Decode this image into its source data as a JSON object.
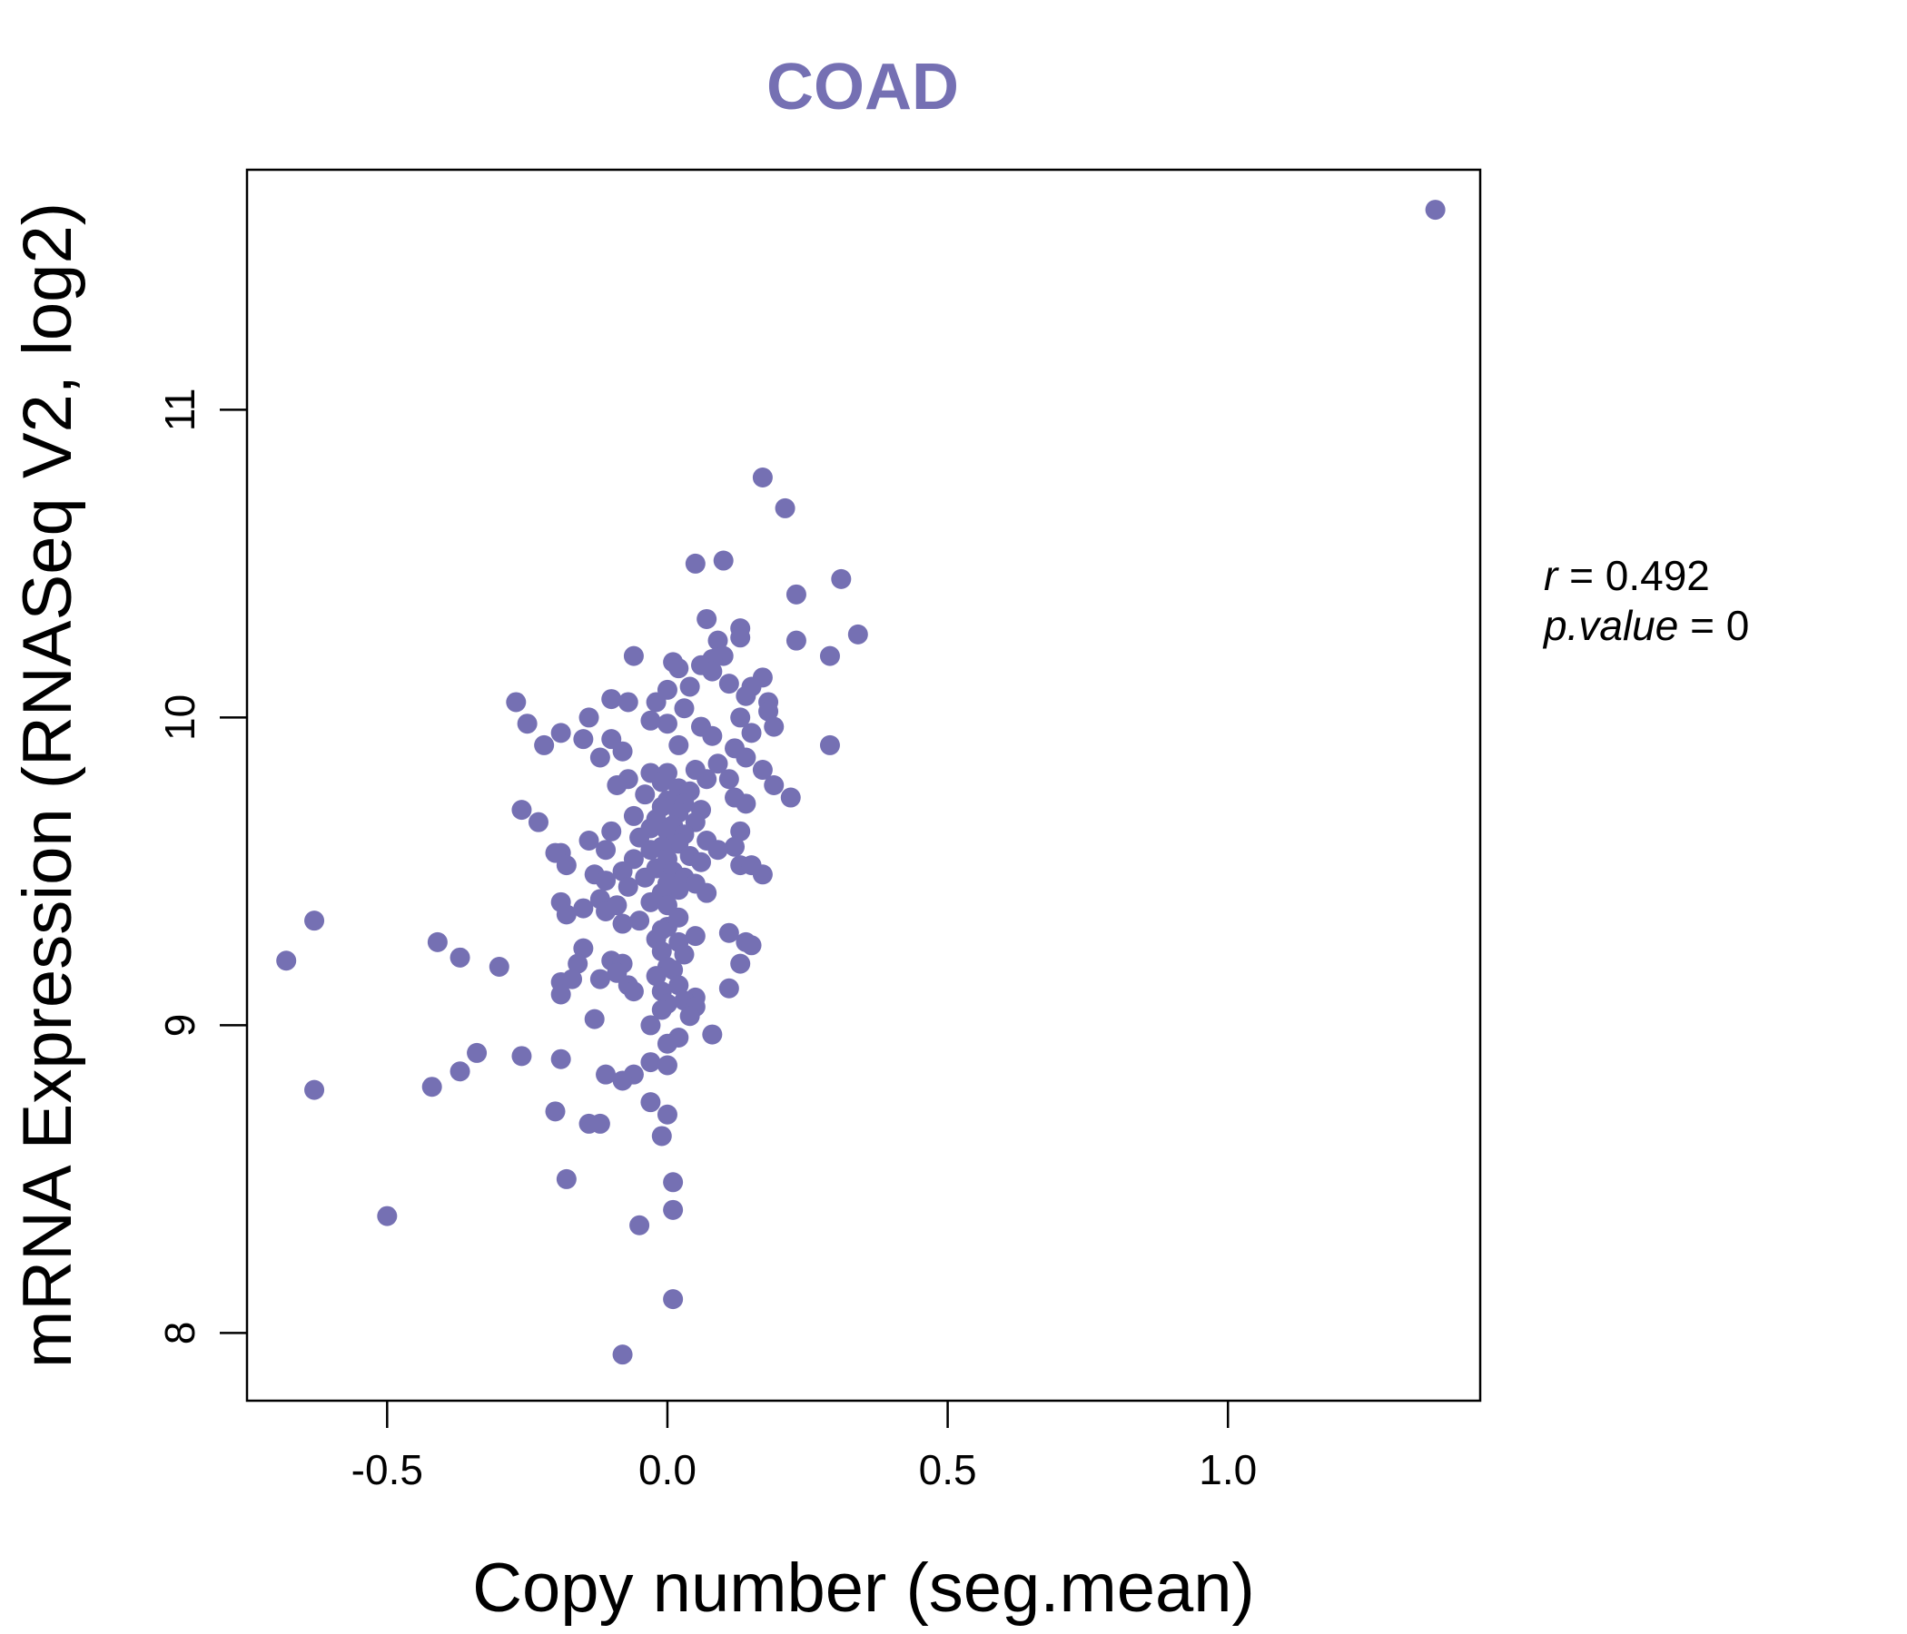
{
  "chart_data": {
    "type": "scatter",
    "title": "COAD",
    "xlabel": "Copy number (seg.mean)",
    "ylabel": "mRNA Expression (RNASeq V2, log2)",
    "xlim": [
      -0.75,
      1.45
    ],
    "ylim": [
      7.78,
      11.78
    ],
    "xticks": [
      -0.5,
      0.0,
      0.5,
      1.0
    ],
    "xtick_labels": [
      "-0.5",
      "0.0",
      "0.5",
      "1.0"
    ],
    "yticks": [
      8,
      9,
      10,
      11
    ],
    "ytick_labels": [
      "8",
      "9",
      "10",
      "11"
    ],
    "point_color": "#7570b3",
    "annotation": {
      "r_label": "r",
      "r_value": "0.492",
      "p_label": "p.value",
      "p_value": "0"
    },
    "points": [
      [
        1.37,
        11.65
      ],
      [
        0.17,
        10.78
      ],
      [
        0.21,
        10.68
      ],
      [
        0.05,
        10.5
      ],
      [
        0.1,
        10.51
      ],
      [
        0.31,
        10.45
      ],
      [
        0.23,
        10.4
      ],
      [
        0.07,
        10.32
      ],
      [
        0.13,
        10.29
      ],
      [
        0.34,
        10.27
      ],
      [
        0.13,
        10.26
      ],
      [
        0.09,
        10.25
      ],
      [
        0.23,
        10.25
      ],
      [
        0.29,
        10.2
      ],
      [
        0.1,
        10.2
      ],
      [
        0.08,
        10.19
      ],
      [
        -0.06,
        10.2
      ],
      [
        0.01,
        10.18
      ],
      [
        0.02,
        10.16
      ],
      [
        0.06,
        10.17
      ],
      [
        0.08,
        10.15
      ],
      [
        0.17,
        10.13
      ],
      [
        0.11,
        10.11
      ],
      [
        0.15,
        10.1
      ],
      [
        0.0,
        10.09
      ],
      [
        0.04,
        10.1
      ],
      [
        0.14,
        10.07
      ],
      [
        0.18,
        10.05
      ],
      [
        -0.1,
        10.06
      ],
      [
        -0.07,
        10.05
      ],
      [
        -0.27,
        10.05
      ],
      [
        -0.02,
        10.05
      ],
      [
        0.03,
        10.03
      ],
      [
        0.18,
        10.02
      ],
      [
        0.13,
        10.0
      ],
      [
        -0.14,
        10.0
      ],
      [
        0.0,
        9.98
      ],
      [
        -0.25,
        9.98
      ],
      [
        -0.03,
        9.99
      ],
      [
        0.06,
        9.97
      ],
      [
        0.19,
        9.97
      ],
      [
        -0.19,
        9.95
      ],
      [
        -0.15,
        9.93
      ],
      [
        0.15,
        9.95
      ],
      [
        0.08,
        9.94
      ],
      [
        -0.1,
        9.93
      ],
      [
        -0.22,
        9.91
      ],
      [
        0.12,
        9.9
      ],
      [
        0.29,
        9.91
      ],
      [
        0.02,
        9.91
      ],
      [
        -0.08,
        9.89
      ],
      [
        -0.12,
        9.87
      ],
      [
        0.14,
        9.87
      ],
      [
        0.09,
        9.85
      ],
      [
        0.05,
        9.83
      ],
      [
        0.17,
        9.83
      ],
      [
        -0.03,
        9.82
      ],
      [
        0.0,
        9.82
      ],
      [
        0.11,
        9.8
      ],
      [
        -0.07,
        9.8
      ],
      [
        0.07,
        9.8
      ],
      [
        -0.01,
        9.79
      ],
      [
        -0.09,
        9.78
      ],
      [
        0.19,
        9.78
      ],
      [
        0.02,
        9.77
      ],
      [
        0.04,
        9.76
      ],
      [
        0.22,
        9.74
      ],
      [
        0.12,
        9.74
      ],
      [
        -0.04,
        9.75
      ],
      [
        0.0,
        9.73
      ],
      [
        0.03,
        9.72
      ],
      [
        0.14,
        9.72
      ],
      [
        -0.01,
        9.71
      ],
      [
        0.06,
        9.7
      ],
      [
        -0.26,
        9.7
      ],
      [
        0.02,
        9.69
      ],
      [
        -0.06,
        9.68
      ],
      [
        -0.02,
        9.67
      ],
      [
        -0.23,
        9.66
      ],
      [
        0.05,
        9.66
      ],
      [
        0.01,
        9.65
      ],
      [
        -0.03,
        9.64
      ],
      [
        0.0,
        9.63
      ],
      [
        0.13,
        9.63
      ],
      [
        -0.1,
        9.63
      ],
      [
        0.03,
        9.62
      ],
      [
        -0.05,
        9.61
      ],
      [
        -0.14,
        9.6
      ],
      [
        0.07,
        9.6
      ],
      [
        0.02,
        9.59
      ],
      [
        -0.01,
        9.58
      ],
      [
        0.12,
        9.58
      ],
      [
        -0.03,
        9.57
      ],
      [
        -0.11,
        9.57
      ],
      [
        0.09,
        9.57
      ],
      [
        -0.19,
        9.56
      ],
      [
        -0.2,
        9.56
      ],
      [
        0.04,
        9.55
      ],
      [
        0.0,
        9.54
      ],
      [
        -0.06,
        9.54
      ],
      [
        0.06,
        9.53
      ],
      [
        -0.18,
        9.52
      ],
      [
        0.13,
        9.52
      ],
      [
        0.15,
        9.52
      ],
      [
        -0.02,
        9.51
      ],
      [
        -0.08,
        9.5
      ],
      [
        0.01,
        9.5
      ],
      [
        -0.13,
        9.49
      ],
      [
        0.17,
        9.49
      ],
      [
        0.03,
        9.48
      ],
      [
        -0.04,
        9.48
      ],
      [
        -0.11,
        9.47
      ],
      [
        0.0,
        9.46
      ],
      [
        0.05,
        9.46
      ],
      [
        -0.07,
        9.45
      ],
      [
        0.02,
        9.44
      ],
      [
        -0.01,
        9.43
      ],
      [
        0.07,
        9.43
      ],
      [
        -0.12,
        9.41
      ],
      [
        -0.19,
        9.4
      ],
      [
        -0.03,
        9.4
      ],
      [
        0.0,
        9.39
      ],
      [
        -0.09,
        9.39
      ],
      [
        -0.15,
        9.38
      ],
      [
        -0.11,
        9.37
      ],
      [
        -0.18,
        9.36
      ],
      [
        0.02,
        9.35
      ],
      [
        -0.05,
        9.34
      ],
      [
        -0.63,
        9.34
      ],
      [
        -0.08,
        9.33
      ],
      [
        0.0,
        9.32
      ],
      [
        -0.01,
        9.31
      ],
      [
        0.11,
        9.3
      ],
      [
        0.05,
        9.29
      ],
      [
        -0.02,
        9.28
      ],
      [
        -0.41,
        9.27
      ],
      [
        0.14,
        9.27
      ],
      [
        0.02,
        9.27
      ],
      [
        0.15,
        9.26
      ],
      [
        -0.15,
        9.25
      ],
      [
        -0.01,
        9.24
      ],
      [
        0.03,
        9.23
      ],
      [
        -0.37,
        9.22
      ],
      [
        -0.68,
        9.21
      ],
      [
        -0.1,
        9.21
      ],
      [
        0.13,
        9.2
      ],
      [
        -0.08,
        9.2
      ],
      [
        -0.16,
        9.2
      ],
      [
        0.0,
        9.19
      ],
      [
        -0.3,
        9.19
      ],
      [
        0.01,
        9.18
      ],
      [
        -0.09,
        9.17
      ],
      [
        -0.02,
        9.16
      ],
      [
        -0.12,
        9.15
      ],
      [
        -0.17,
        9.15
      ],
      [
        -0.19,
        9.14
      ],
      [
        -0.07,
        9.13
      ],
      [
        0.02,
        9.13
      ],
      [
        0.11,
        9.12
      ],
      [
        -0.01,
        9.11
      ],
      [
        -0.06,
        9.11
      ],
      [
        -0.19,
        9.1
      ],
      [
        0.05,
        9.09
      ],
      [
        0.03,
        9.08
      ],
      [
        0.0,
        9.07
      ],
      [
        0.05,
        9.06
      ],
      [
        -0.01,
        9.05
      ],
      [
        0.04,
        9.03
      ],
      [
        -0.13,
        9.02
      ],
      [
        -0.03,
        9.0
      ],
      [
        0.08,
        8.97
      ],
      [
        0.02,
        8.96
      ],
      [
        0.0,
        8.94
      ],
      [
        -0.34,
        8.91
      ],
      [
        -0.26,
        8.9
      ],
      [
        -0.19,
        8.89
      ],
      [
        -0.03,
        8.88
      ],
      [
        0.0,
        8.87
      ],
      [
        -0.37,
        8.85
      ],
      [
        -0.11,
        8.84
      ],
      [
        -0.06,
        8.84
      ],
      [
        -0.08,
        8.82
      ],
      [
        -0.42,
        8.8
      ],
      [
        -0.63,
        8.79
      ],
      [
        -0.03,
        8.75
      ],
      [
        -0.2,
        8.72
      ],
      [
        0.0,
        8.71
      ],
      [
        -0.14,
        8.68
      ],
      [
        -0.12,
        8.68
      ],
      [
        -0.01,
        8.64
      ],
      [
        -0.18,
        8.5
      ],
      [
        0.01,
        8.49
      ],
      [
        0.01,
        8.4
      ],
      [
        -0.5,
        8.38
      ],
      [
        -0.05,
        8.35
      ],
      [
        0.01,
        8.11
      ],
      [
        -0.08,
        7.93
      ]
    ]
  }
}
